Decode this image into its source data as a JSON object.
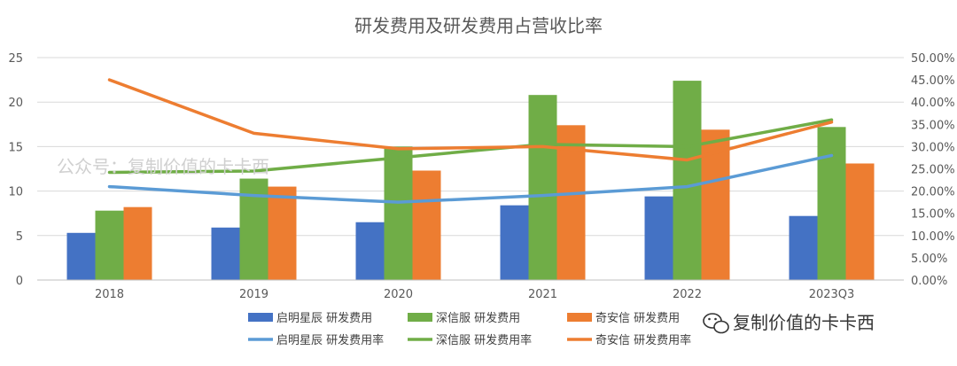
{
  "chart_data": {
    "type": "bar",
    "title": "研发费用及研发费用占营收比率",
    "categories": [
      "2018",
      "2019",
      "2020",
      "2021",
      "2022",
      "2023Q3"
    ],
    "ylim": [
      0,
      25
    ],
    "y2lim": [
      0,
      0.5
    ],
    "y_ticks": [
      "0",
      "5",
      "10",
      "15",
      "20",
      "25"
    ],
    "y2_ticks": [
      "0.00%",
      "5.00%",
      "10.00%",
      "15.00%",
      "20.00%",
      "25.00%",
      "30.00%",
      "35.00%",
      "40.00%",
      "45.00%",
      "50.00%"
    ],
    "grid": true,
    "legend_position": "bottom",
    "bar_series": [
      {
        "name": "启明星辰 研发费用",
        "color": "#4472C4",
        "values": [
          5.3,
          5.9,
          6.5,
          8.4,
          9.4,
          7.2
        ]
      },
      {
        "name": "深信服 研发费用",
        "color": "#70AD47",
        "values": [
          7.8,
          11.4,
          15.0,
          20.8,
          22.4,
          17.2
        ]
      },
      {
        "name": "奇安信 研发费用",
        "color": "#ED7D31",
        "values": [
          8.2,
          10.5,
          12.3,
          17.4,
          16.9,
          13.1
        ]
      }
    ],
    "line_series": [
      {
        "name": "启明星辰 研发费用率",
        "color": "#5B9BD5",
        "values": [
          0.21,
          0.19,
          0.175,
          0.19,
          0.21,
          0.28
        ]
      },
      {
        "name": "深信服 研发费用率",
        "color": "#70AD47",
        "values": [
          0.242,
          0.245,
          0.275,
          0.305,
          0.3,
          0.36
        ]
      },
      {
        "name": "奇安信 研发费用率",
        "color": "#ED7D31",
        "values": [
          0.45,
          0.33,
          0.295,
          0.3,
          0.27,
          0.355
        ]
      }
    ]
  },
  "watermark": {
    "overlay_text": "公众号：复制价值的卡卡西",
    "brand_text": "复制价值的卡卡西",
    "icon": "wechat-icon"
  }
}
